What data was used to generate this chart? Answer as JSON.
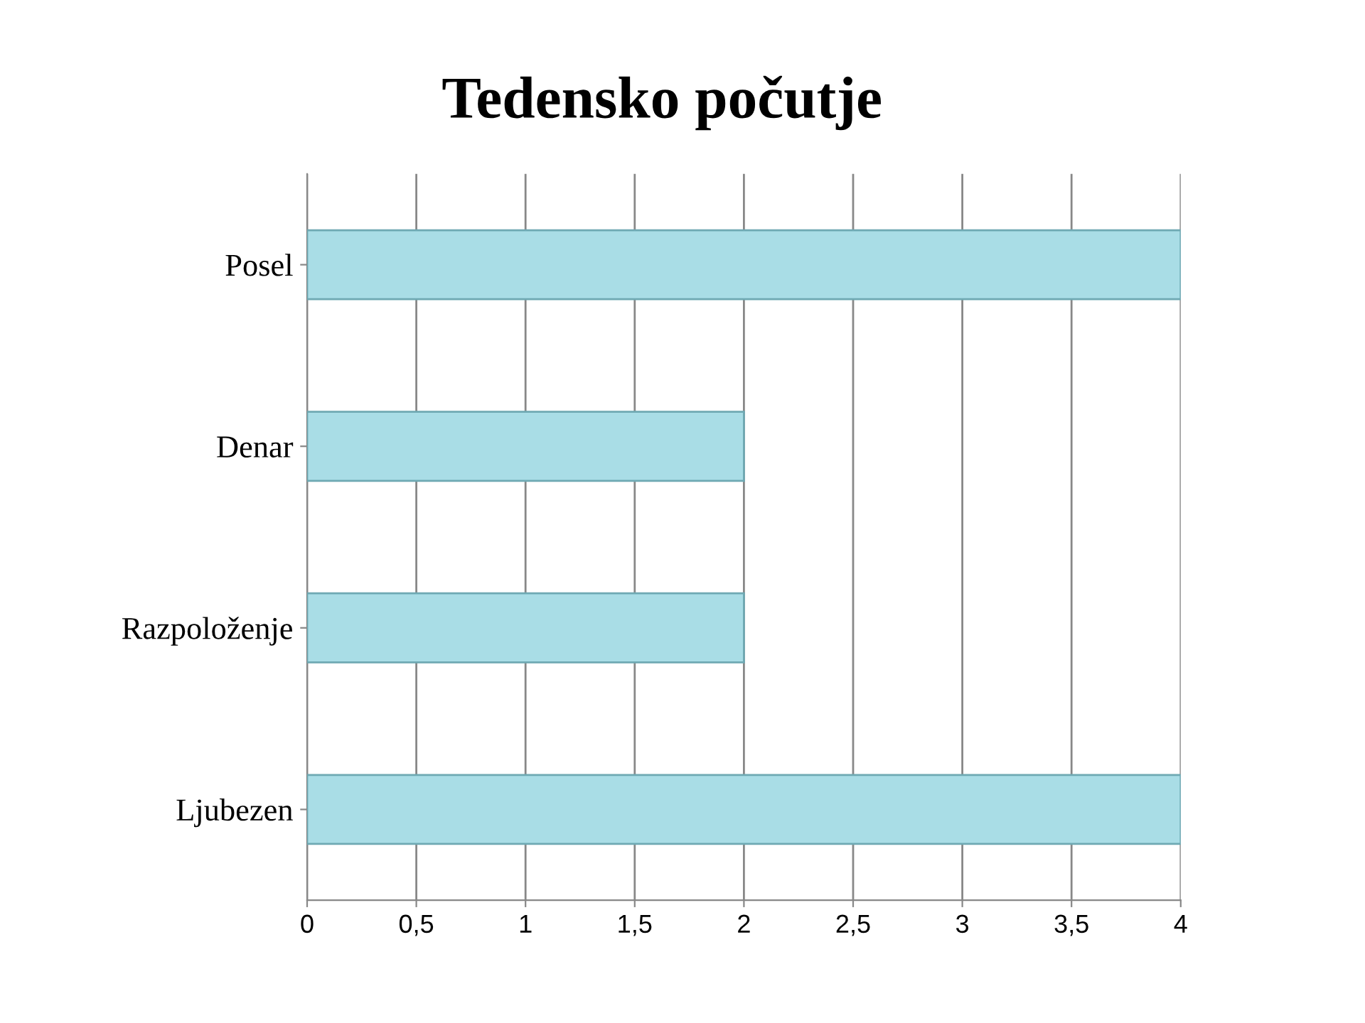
{
  "chart_data": {
    "type": "bar",
    "orientation": "horizontal",
    "title": "Tedensko počutje",
    "categories": [
      "Posel",
      "Denar",
      "Razpoloženje",
      "Ljubezen"
    ],
    "values": [
      4,
      2,
      2,
      4
    ],
    "color": "#a9dde6",
    "xlim": [
      0,
      4
    ],
    "xticks": [
      0,
      {
        "value": 0.5,
        "label": "0,5"
      },
      1,
      {
        "value": 1.5,
        "label": "1,5"
      },
      2,
      {
        "value": 2.5,
        "label": "2,5"
      },
      3,
      {
        "value": 3.5,
        "label": "3,5"
      },
      4
    ],
    "grid": "x"
  }
}
